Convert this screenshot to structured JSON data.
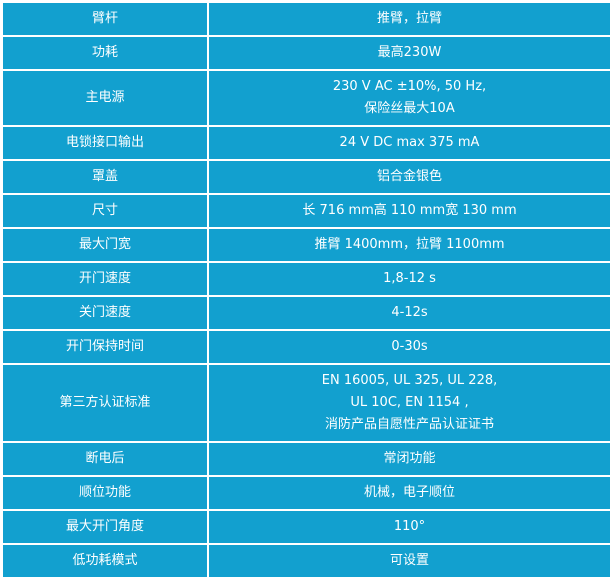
{
  "table": {
    "rows": [
      {
        "label": "臂杆",
        "value": [
          "推臂，拉臂"
        ]
      },
      {
        "label": "功耗",
        "value": [
          "最高230W"
        ]
      },
      {
        "label": "主电源",
        "value": [
          "230 V AC ±10%, 50 Hz,",
          "保险丝最大10A"
        ]
      },
      {
        "label": "电锁接口输出",
        "value": [
          "24 V DC max 375 mA"
        ]
      },
      {
        "label": "罩盖",
        "value": [
          "铝合金银色"
        ]
      },
      {
        "label": "尺寸",
        "value": [
          "长 716 mm高 110 mm宽 130 mm"
        ]
      },
      {
        "label": "最大门宽",
        "value": [
          "推臂 1400mm，拉臂 1100mm"
        ]
      },
      {
        "label": "开门速度",
        "value": [
          "1,8-12 s"
        ]
      },
      {
        "label": "关门速度",
        "value": [
          "4-12s"
        ]
      },
      {
        "label": "开门保持时间",
        "value": [
          "0-30s"
        ]
      },
      {
        "label": "第三方认证标准",
        "value": [
          "EN 16005, UL 325, UL 228,",
          "UL 10C, EN 1154 ,",
          "消防产品自愿性产品认证证书"
        ]
      },
      {
        "label": "断电后",
        "value": [
          "常闭功能"
        ]
      },
      {
        "label": "顺位功能",
        "value": [
          "机械，电子顺位"
        ]
      },
      {
        "label": "最大开门角度",
        "value": [
          "110°"
        ]
      },
      {
        "label": "低功耗模式",
        "value": [
          "可设置"
        ]
      }
    ]
  },
  "colors": {
    "cell_background": "#12a0cf",
    "text": "#ffffff",
    "border": "#ffffff"
  }
}
